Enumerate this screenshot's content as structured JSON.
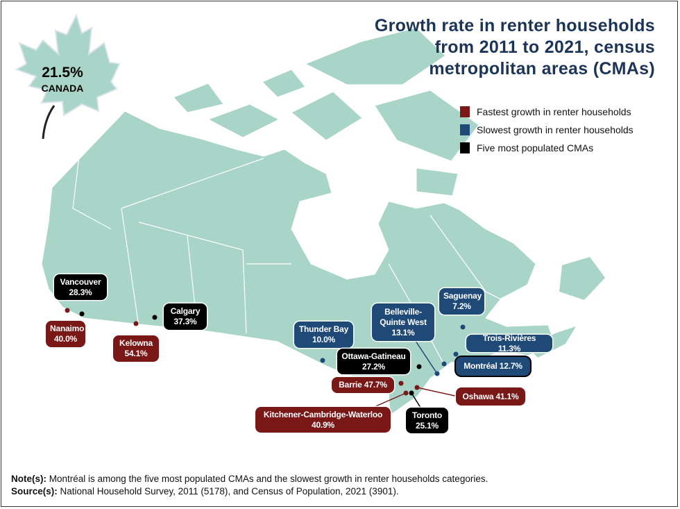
{
  "title": "Growth rate in renter households from 2011 to 2021, census metropolitan areas (CMAs)",
  "colors": {
    "land": "#a9d5c8",
    "fastest": "#7a1717",
    "slowest": "#1f4a78",
    "populated": "#000000",
    "title": "#1c3557"
  },
  "legend": [
    {
      "label": "Fastest growth in renter households",
      "color": "#7a1717"
    },
    {
      "label": "Slowest growth in renter households",
      "color": "#1f4a78"
    },
    {
      "label": "Five most populated CMAs",
      "color": "#000000"
    }
  ],
  "canada": {
    "value": "21.5%",
    "label": "CANADA",
    "icon": "maple-leaf-icon"
  },
  "cmas": {
    "vancouver": {
      "name": "Vancouver",
      "value": "28.3%",
      "category": "populated"
    },
    "nanaimo": {
      "name": "Nanaimo",
      "value": "40.0%",
      "category": "fastest"
    },
    "kelowna": {
      "name": "Kelowna",
      "value": "54.1%",
      "category": "fastest"
    },
    "calgary": {
      "name": "Calgary",
      "value": "37.3%",
      "category": "populated"
    },
    "thunder_bay": {
      "name": "Thunder Bay",
      "value": "10.0%",
      "category": "slowest"
    },
    "belleville": {
      "name": "Belleville-Quinte West",
      "name_line1": "Belleville-",
      "name_line2": "Quinte West",
      "value": "13.1%",
      "category": "slowest"
    },
    "saguenay": {
      "name": "Saguenay",
      "value": "7.2%",
      "category": "slowest"
    },
    "trois_rivieres": {
      "name": "Trois-Rivières",
      "value": "11.3%",
      "category": "slowest",
      "text": "Trois-Rivières 11.3%"
    },
    "montreal": {
      "name": "Montréal",
      "value": "12.7%",
      "category": "slowest and populated",
      "text": "Montréal 12.7%"
    },
    "ottawa": {
      "name": "Ottawa-Gatineau",
      "value": "27.2%",
      "category": "populated"
    },
    "barrie": {
      "name": "Barrie",
      "value": "47.7%",
      "category": "fastest",
      "text": "Barrie 47.7%"
    },
    "oshawa": {
      "name": "Oshawa",
      "value": "41.1%",
      "category": "fastest",
      "text": "Oshawa 41.1%"
    },
    "kcw": {
      "name": "Kitchener-Cambridge-Waterloo",
      "value": "40.9%",
      "category": "fastest"
    },
    "toronto": {
      "name": "Toronto",
      "value": "25.1%",
      "category": "populated"
    }
  },
  "notes": {
    "note_label": "Note(s):",
    "note_text": " Montréal is among the five most populated CMAs and the slowest growth in renter households categories.",
    "source_label": "Source(s):",
    "source_text": " National Household Survey, 2011 (5178), and Census of Population, 2021 (3901)."
  }
}
